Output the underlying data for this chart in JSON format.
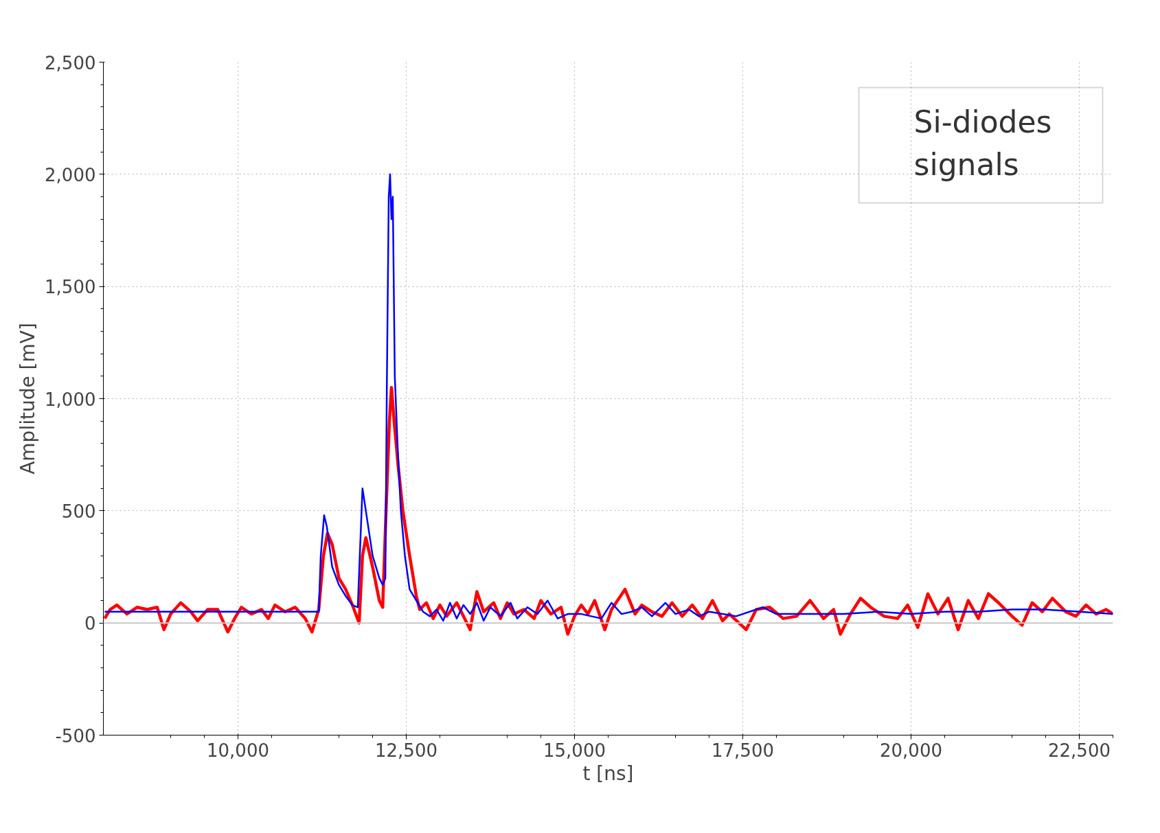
{
  "chart_data": {
    "type": "line",
    "xlabel": "t [ns]",
    "ylabel": "Amplitude [mV]",
    "annotations": [
      "Si-diodes signals"
    ],
    "xlim": [
      8000,
      23000
    ],
    "ylim": [
      -500,
      2500
    ],
    "xticks": [
      {
        "value": 10000,
        "label": "10,000"
      },
      {
        "value": 12500,
        "label": "12,500"
      },
      {
        "value": 15000,
        "label": "15,000"
      },
      {
        "value": 17500,
        "label": "17,500"
      },
      {
        "value": 20000,
        "label": "20,000"
      },
      {
        "value": 22500,
        "label": "22,500"
      }
    ],
    "yticks": [
      {
        "value": -500,
        "label": "-500"
      },
      0,
      500,
      {
        "value": 1000,
        "label": "1,000"
      },
      {
        "value": 1500,
        "label": "1,500"
      },
      {
        "value": 2000,
        "label": "2,000"
      },
      {
        "value": 2500,
        "label": "2,500"
      }
    ],
    "grid": true,
    "line_style": "solid",
    "ref_lines": [
      {
        "axis": "y",
        "value": 0,
        "color": "#c8c8c8"
      }
    ],
    "series": [
      {
        "color": "#ff0000",
        "x": [
          8020,
          8100,
          8200,
          8350,
          8500,
          8650,
          8800,
          8900,
          9000,
          9150,
          9300,
          9400,
          9550,
          9700,
          9850,
          9950,
          10050,
          10200,
          10350,
          10450,
          10550,
          10700,
          10850,
          11000,
          11100,
          11200,
          11270,
          11330,
          11400,
          11500,
          11600,
          11700,
          11800,
          11850,
          11900,
          12000,
          12100,
          12150,
          12200,
          12250,
          12280,
          12320,
          12380,
          12450,
          12550,
          12650,
          12700,
          12800,
          12900,
          13000,
          13100,
          13250,
          13350,
          13450,
          13550,
          13650,
          13800,
          13900,
          14000,
          14100,
          14250,
          14400,
          14500,
          14650,
          14800,
          14900,
          15000,
          15100,
          15200,
          15300,
          15450,
          15550,
          15750,
          15900,
          16000,
          16150,
          16300,
          16450,
          16600,
          16750,
          16900,
          17050,
          17200,
          17300,
          17550,
          17700,
          17900,
          18100,
          18300,
          18500,
          18700,
          18850,
          18950,
          19100,
          19250,
          19400,
          19600,
          19800,
          19950,
          20100,
          20250,
          20400,
          20550,
          20700,
          20850,
          21000,
          21150,
          21300,
          21500,
          21650,
          21800,
          21950,
          22100,
          22300,
          22450,
          22600,
          22750,
          22900,
          23000
        ],
        "values": [
          20,
          60,
          80,
          40,
          70,
          60,
          70,
          -30,
          40,
          90,
          50,
          10,
          60,
          60,
          -40,
          20,
          70,
          40,
          60,
          20,
          80,
          50,
          70,
          20,
          -40,
          60,
          300,
          400,
          350,
          200,
          150,
          80,
          0,
          300,
          380,
          250,
          100,
          70,
          500,
          900,
          1050,
          900,
          700,
          500,
          300,
          120,
          60,
          90,
          20,
          80,
          30,
          90,
          30,
          -30,
          140,
          50,
          90,
          20,
          90,
          40,
          60,
          20,
          100,
          40,
          70,
          -50,
          30,
          80,
          40,
          100,
          -30,
          60,
          150,
          40,
          80,
          50,
          30,
          90,
          30,
          80,
          20,
          100,
          10,
          40,
          -30,
          60,
          70,
          20,
          30,
          100,
          20,
          60,
          -50,
          40,
          110,
          70,
          30,
          20,
          80,
          -20,
          130,
          40,
          110,
          -30,
          100,
          20,
          130,
          90,
          30,
          -10,
          90,
          50,
          110,
          50,
          30,
          80,
          40,
          60,
          40
        ]
      },
      {
        "color": "#0000ff",
        "x": [
          8020,
          9000,
          10000,
          11000,
          11200,
          11230,
          11280,
          11320,
          11400,
          11500,
          11600,
          11700,
          11780,
          11810,
          11850,
          11900,
          12000,
          12100,
          12150,
          12190,
          12210,
          12240,
          12260,
          12280,
          12300,
          12330,
          12370,
          12420,
          12480,
          12550,
          12650,
          12750,
          12850,
          12950,
          13050,
          13150,
          13250,
          13350,
          13450,
          13550,
          13650,
          13750,
          13900,
          14050,
          14150,
          14300,
          14450,
          14600,
          14750,
          14900,
          15100,
          15250,
          15400,
          15550,
          15700,
          15850,
          16000,
          16150,
          16350,
          16500,
          16700,
          16850,
          17000,
          17200,
          17400,
          17800,
          18000,
          18500,
          19000,
          19500,
          20000,
          20500,
          21000,
          21500,
          22000,
          22500,
          23000
        ],
        "values": [
          50,
          50,
          50,
          50,
          50,
          300,
          480,
          430,
          250,
          170,
          120,
          80,
          70,
          300,
          600,
          500,
          300,
          200,
          170,
          200,
          1000,
          1900,
          2000,
          1800,
          1900,
          1100,
          800,
          500,
          300,
          150,
          100,
          50,
          30,
          60,
          10,
          90,
          20,
          80,
          40,
          90,
          10,
          70,
          30,
          90,
          20,
          70,
          40,
          100,
          20,
          40,
          40,
          30,
          20,
          90,
          40,
          50,
          70,
          30,
          90,
          40,
          60,
          30,
          50,
          40,
          30,
          70,
          40,
          40,
          40,
          50,
          40,
          50,
          50,
          60,
          60,
          50,
          40
        ]
      }
    ]
  }
}
